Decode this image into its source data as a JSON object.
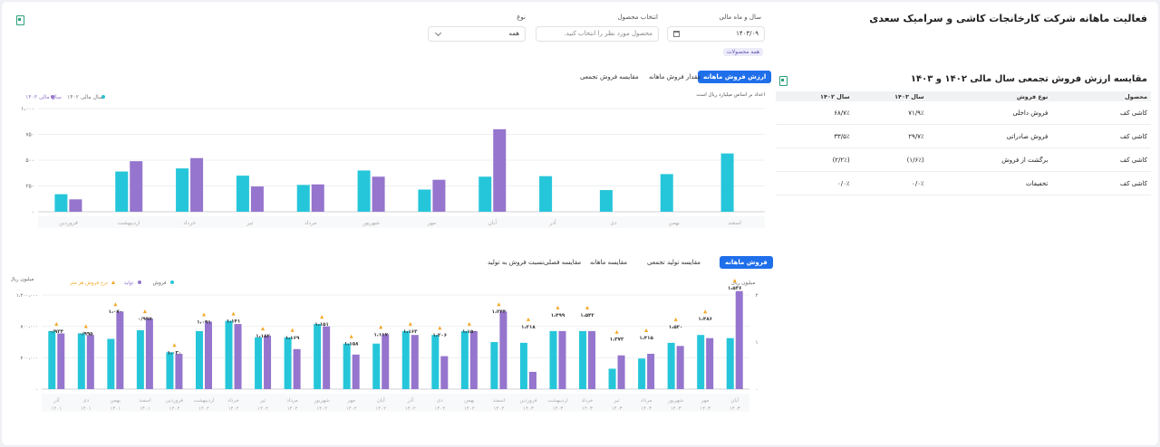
{
  "header": {
    "title": "فعالیت ماهانه شرکت کارخانجات کاشی و سرامیک سعدی",
    "filters": {
      "year_month": {
        "label": "سال و ماه مالی",
        "value": "۱۴۰۳/۰۹"
      },
      "product": {
        "label": "انتخاب محصول",
        "placeholder": "محصول مورد نظر را انتخاب کنید."
      },
      "type": {
        "label": "نوع",
        "value": "همه"
      }
    },
    "chip": "همه محصولات"
  },
  "top_chart": {
    "tabs": [
      "ارزش فروش ماهانه",
      "مقدار فروش ماهانه",
      "مقایسه فروش تجمعی"
    ],
    "active_tab": "ارزش فروش ماهانه",
    "unit_note": "اعداد بر اساس میلیارد ریال است",
    "colors": {
      "s1402": "#26c6da",
      "s1403": "#9575cd"
    }
  },
  "bottom_chart": {
    "tabs": [
      "فروش ماهانه",
      "مقایسه تولید تجمعی",
      "مقایسه ماهانه",
      "مقایسه فصلی",
      "نسبت فروش به تولید"
    ],
    "active_tab": "فروش ماهانه",
    "left_axis_label": "میلیون ریال",
    "right_axis_label": "میلیون ریال",
    "colors": {
      "sale": "#26c6da",
      "prod": "#9575cd",
      "rate": "#f5a623"
    }
  },
  "comparison": {
    "title": "مقایسه ارزش فروش تجمعی سال مالی ۱۴۰۲ و ۱۴۰۳",
    "columns": [
      "محصول",
      "نوع فروش",
      "سال ۱۴۰۳",
      "سال ۱۴۰۲"
    ],
    "rows": [
      [
        "کاشی کف",
        "فروش داخلی",
        "۷۱/۹٪",
        "۶۸/۷٪"
      ],
      [
        "کاشی کف",
        "فروش صادراتی",
        "۲۹/۷٪",
        "۳۳/۵٪"
      ],
      [
        "کاشی کف",
        "برگشت از فروش",
        "(۱/۶٪)",
        "(۲/۲٪)"
      ],
      [
        "کاشی کف",
        "تخفیفات",
        "۰٪/۰",
        "۰٪/۰"
      ]
    ]
  },
  "chart_data": [
    {
      "type": "bar",
      "categories": [
        "فروردین",
        "اردیبهشت",
        "خرداد",
        "تیر",
        "مرداد",
        "شهریور",
        "مهر",
        "آبان",
        "آذر",
        "دی",
        "بهمن",
        "اسفند"
      ],
      "series": [
        {
          "name": "سال مالی ۱۴۰۲",
          "values": [
            170,
            390,
            420,
            350,
            260,
            400,
            215,
            340,
            345,
            210,
            365,
            565
          ]
        },
        {
          "name": "سال مالی ۱۴۰۳",
          "values": [
            120,
            490,
            520,
            245,
            265,
            340,
            310,
            800,
            null,
            null,
            null,
            null
          ]
        }
      ],
      "y_ticks": [
        "۰",
        "۲۵۰",
        "۵۰۰",
        "۷۵۰",
        "۱،۰۰۰"
      ],
      "ylim": [
        0,
        1000
      ],
      "legend": "top-left"
    },
    {
      "type": "bar",
      "categories": [
        [
          "آذر",
          "۱۴۰۱"
        ],
        [
          "دی",
          "۱۴۰۱"
        ],
        [
          "بهمن",
          "۱۴۰۱"
        ],
        [
          "اسفند",
          "۱۴۰۱"
        ],
        [
          "فروردین",
          "۱۴۰۲"
        ],
        [
          "اردیبهشت",
          "۱۴۰۲"
        ],
        [
          "خرداد",
          "۱۴۰۲"
        ],
        [
          "تیر",
          "۱۴۰۲"
        ],
        [
          "مرداد",
          "۱۴۰۲"
        ],
        [
          "شهریور",
          "۱۴۰۲"
        ],
        [
          "مهر",
          "۱۴۰۲"
        ],
        [
          "آبان",
          "۱۴۰۲"
        ],
        [
          "آذر",
          "۱۴۰۲"
        ],
        [
          "دی",
          "۱۴۰۲"
        ],
        [
          "بهمن",
          "۱۴۰۲"
        ],
        [
          "اسفند",
          "۱۴۰۲"
        ],
        [
          "فروردین",
          "۱۴۰۳"
        ],
        [
          "اردیبهشت",
          "۱۴۰۳"
        ],
        [
          "خرداد",
          "۱۴۰۳"
        ],
        [
          "تیر",
          "۱۴۰۳"
        ],
        [
          "مرداد",
          "۱۴۰۳"
        ],
        [
          "شهریور",
          "۱۴۰۳"
        ],
        [
          "مهر",
          "۱۴۰۳"
        ],
        [
          "آبان",
          "۱۴۰۳"
        ]
      ],
      "series": [
        {
          "name": "فروش",
          "values": [
            740000,
            710000,
            640000,
            750000,
            470000,
            740000,
            870000,
            660000,
            660000,
            830000,
            580000,
            580000,
            740000,
            690000,
            740000,
            600000,
            590000,
            740000,
            740000,
            260000,
            390000,
            590000,
            690000,
            650000
          ]
        },
        {
          "name": "تولید",
          "values": [
            710000,
            690000,
            990000,
            900000,
            450000,
            860000,
            830000,
            680000,
            510000,
            800000,
            440000,
            700000,
            690000,
            420000,
            740000,
            990000,
            220000,
            740000,
            740000,
            430000,
            450000,
            550000,
            650000,
            1250000
          ]
        },
        {
          "name": "نرخ فروش هر متر",
          "labels": [
            "۰/۹۳۳",
            "۰/۹۹۵",
            "۱،۰۷۰",
            "۰/۹۹۷",
            "۱،۰۳۰",
            "۱،۰۹۱",
            "۱،۱۴۱",
            "۱،۱۸۲",
            "۱،۱۶۹",
            "۱،۱۵۱",
            "۱،۱۵۸",
            "۱،۱۱۷",
            "۱،۱۶۳",
            "۱،۲۰۶",
            "۱،۱۵۰",
            "۱،۲۴۴",
            "۱،۲۱۸",
            "۱،۴۹۹",
            "۱،۵۴۲",
            "۱،۳۷۲",
            "۱،۴۱۵",
            "۱،۵۲۰",
            "۱،۴۸۶",
            "۱،۵۳۶"
          ]
        }
      ],
      "y_left_ticks": [
        "۰",
        "۴۰۰،۰۰۰",
        "۸۰۰،۰۰۰",
        "۱،۲۰۰،۰۰۰"
      ],
      "y_right_ticks": [
        "۰",
        "۱",
        "۲"
      ],
      "ylim": [
        0,
        1200000
      ],
      "legend": "top-left"
    }
  ]
}
